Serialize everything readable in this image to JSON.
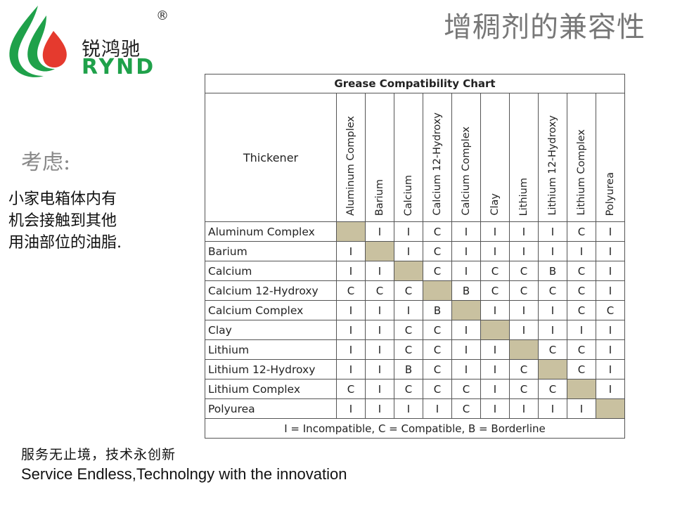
{
  "header": {
    "logo_cn": "锐鸿驰",
    "logo_en": "RYND",
    "registered": "®",
    "title": "增稠剂的兼容性"
  },
  "sidebar": {
    "consider": "考虑:",
    "note_lines": [
      "小家电箱体内有",
      "机会接触到其他",
      "用油部位的油脂."
    ]
  },
  "chart_data": {
    "type": "table",
    "title": "Grease Compatibility Chart",
    "corner_label": "Thickener",
    "columns": [
      "Aluminum Complex",
      "Barium",
      "Calcium",
      "Calcium 12-Hydroxy",
      "Calcium Complex",
      "Clay",
      "Lithium",
      "Lithium 12-Hydroxy",
      "Lithium Complex",
      "Polyurea"
    ],
    "rows": [
      {
        "label": "Aluminum Complex",
        "values": [
          "",
          "I",
          "I",
          "C",
          "I",
          "I",
          "I",
          "I",
          "C",
          "I"
        ]
      },
      {
        "label": "Barium",
        "values": [
          "I",
          "",
          "I",
          "C",
          "I",
          "I",
          "I",
          "I",
          "I",
          "I"
        ]
      },
      {
        "label": "Calcium",
        "values": [
          "I",
          "I",
          "",
          "C",
          "I",
          "C",
          "C",
          "B",
          "C",
          "I"
        ]
      },
      {
        "label": "Calcium 12-Hydroxy",
        "values": [
          "C",
          "C",
          "C",
          "",
          "B",
          "C",
          "C",
          "C",
          "C",
          "I"
        ]
      },
      {
        "label": "Calcium Complex",
        "values": [
          "I",
          "I",
          "I",
          "B",
          "",
          "I",
          "I",
          "I",
          "C",
          "C"
        ]
      },
      {
        "label": "Clay",
        "values": [
          "I",
          "I",
          "C",
          "C",
          "I",
          "",
          "I",
          "I",
          "I",
          "I"
        ]
      },
      {
        "label": "Lithium",
        "values": [
          "I",
          "I",
          "C",
          "C",
          "I",
          "I",
          "",
          "C",
          "C",
          "I"
        ]
      },
      {
        "label": "Lithium 12-Hydroxy",
        "values": [
          "I",
          "I",
          "B",
          "C",
          "I",
          "I",
          "C",
          "",
          "C",
          "I"
        ]
      },
      {
        "label": "Lithium Complex",
        "values": [
          "C",
          "I",
          "C",
          "C",
          "C",
          "I",
          "C",
          "C",
          "",
          "I"
        ]
      },
      {
        "label": "Polyurea",
        "values": [
          "I",
          "I",
          "I",
          "I",
          "C",
          "I",
          "I",
          "I",
          "I",
          ""
        ]
      }
    ],
    "legend": "I = Incompatible, C = Compatible, B = Borderline",
    "diagonal_color": "#c9c1a0"
  },
  "footer": {
    "slogan_cn": "服务无止境，技术永创新",
    "slogan_en": "Service Endless,Technolngy with the innovation"
  },
  "colors": {
    "brand_green": "#1fa14a",
    "brand_red": "#e53a2e",
    "title_gray": "#777777"
  }
}
